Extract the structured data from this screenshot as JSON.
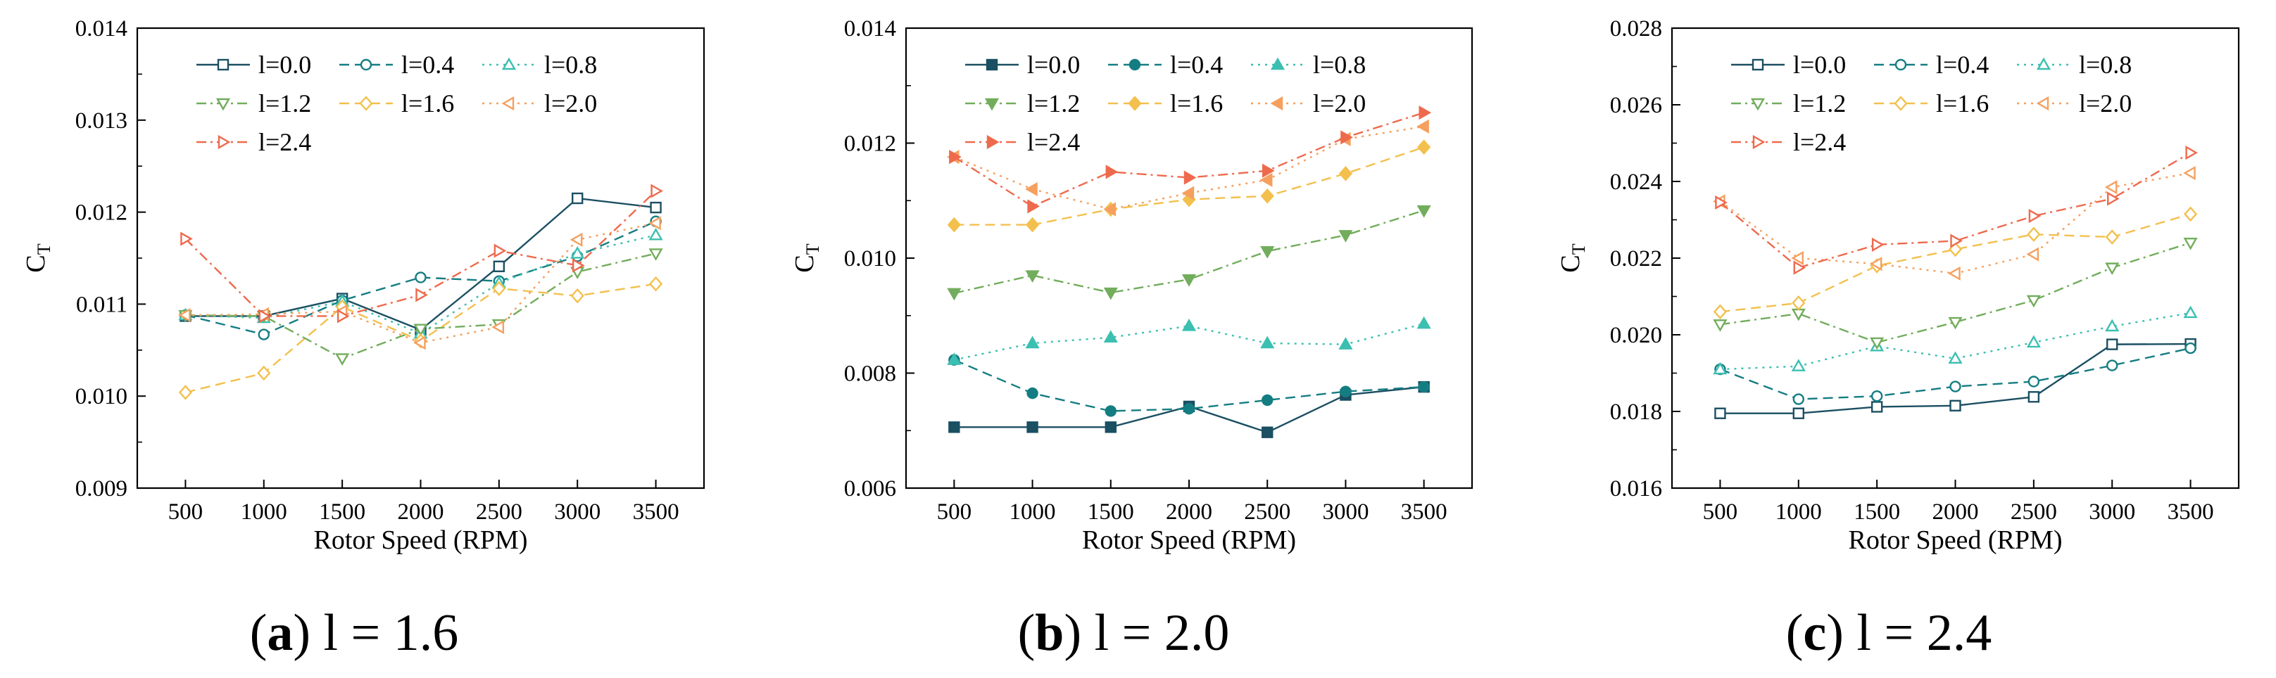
{
  "figure": {
    "marker_styles": {
      "0": "square",
      "1": "circle",
      "2": "triangle-up",
      "3": "triangle-down",
      "4": "diamond",
      "5": "triangle-left",
      "6": "triangle-right"
    }
  },
  "chart_data": [
    {
      "type": "line",
      "caption_letter": "a",
      "caption_rest": "l = 1.6",
      "xlabel": "Rotor Speed (RPM)",
      "ylabel_main": "C",
      "ylabel_sub": "T",
      "x": [
        500,
        1000,
        1500,
        2000,
        2500,
        3000,
        3500
      ],
      "xticks": [
        "500",
        "1000",
        "1500",
        "2000",
        "2500",
        "3000",
        "3500"
      ],
      "ylim": [
        0.009,
        0.014
      ],
      "yticks": [
        "0.009",
        "0.010",
        "0.011",
        "0.012",
        "0.013",
        "0.014"
      ],
      "filled_markers": false,
      "legend_position": "top-left",
      "series": [
        {
          "name": "l=0.0",
          "color": "#1b4f62",
          "dash": "solid",
          "values": [
            0.01087,
            0.01087,
            0.01106,
            0.01072,
            0.01141,
            0.01215,
            0.01205
          ]
        },
        {
          "name": "l=0.4",
          "color": "#147d82",
          "dash": "dashed",
          "values": [
            0.01088,
            0.01067,
            0.01104,
            0.01129,
            0.01125,
            0.01152,
            0.0119
          ]
        },
        {
          "name": "l=0.8",
          "color": "#3bbfb1",
          "dash": "dotted",
          "values": [
            0.01088,
            0.01085,
            0.01103,
            0.01068,
            0.01123,
            0.01155,
            0.01175
          ]
        },
        {
          "name": "l=1.2",
          "color": "#72ad5c",
          "dash": "dashdot",
          "values": [
            0.01088,
            0.01087,
            0.01041,
            0.01073,
            0.01078,
            0.01135,
            0.01155
          ]
        },
        {
          "name": "l=1.6",
          "color": "#f3c04d",
          "dash": "dashed",
          "values": [
            0.01004,
            0.01025,
            0.01097,
            0.0106,
            0.01117,
            0.01109,
            0.01122
          ]
        },
        {
          "name": "l=2.0",
          "color": "#f5a05f",
          "dash": "dotted",
          "values": [
            0.01088,
            0.01089,
            0.01092,
            0.01058,
            0.01075,
            0.0117,
            0.01188
          ]
        },
        {
          "name": "l=2.4",
          "color": "#ee6a4d",
          "dash": "dashdot",
          "values": [
            0.01171,
            0.01087,
            0.01087,
            0.0111,
            0.01158,
            0.01142,
            0.01223
          ]
        }
      ]
    },
    {
      "type": "line",
      "caption_letter": "b",
      "caption_rest": "l = 2.0",
      "xlabel": "Rotor Speed (RPM)",
      "ylabel_main": "C",
      "ylabel_sub": "T",
      "x": [
        500,
        1000,
        1500,
        2000,
        2500,
        3000,
        3500
      ],
      "xticks": [
        "500",
        "1000",
        "1500",
        "2000",
        "2500",
        "3000",
        "3500"
      ],
      "ylim": [
        0.006,
        0.014
      ],
      "yticks": [
        "0.006",
        "0.008",
        "0.010",
        "0.012",
        "0.014"
      ],
      "filled_markers": true,
      "legend_position": "top-left",
      "series": [
        {
          "name": "l=0.0",
          "color": "#1b4f62",
          "dash": "solid",
          "values": [
            0.00706,
            0.00706,
            0.00706,
            0.00742,
            0.00697,
            0.00762,
            0.00776
          ]
        },
        {
          "name": "l=0.4",
          "color": "#147d82",
          "dash": "dashed",
          "values": [
            0.00823,
            0.00765,
            0.00734,
            0.00738,
            0.00753,
            0.00768,
            0.00776
          ]
        },
        {
          "name": "l=0.8",
          "color": "#3bbfb1",
          "dash": "dotted",
          "values": [
            0.00823,
            0.00852,
            0.00862,
            0.00882,
            0.00852,
            0.0085,
            0.00886
          ]
        },
        {
          "name": "l=1.2",
          "color": "#72ad5c",
          "dash": "dashdot",
          "values": [
            0.00939,
            0.0097,
            0.0094,
            0.00963,
            0.01012,
            0.0104,
            0.01083
          ]
        },
        {
          "name": "l=1.6",
          "color": "#f3c04d",
          "dash": "dashed",
          "values": [
            0.01058,
            0.01058,
            0.01085,
            0.01102,
            0.01108,
            0.01147,
            0.01193
          ]
        },
        {
          "name": "l=2.0",
          "color": "#f5a05f",
          "dash": "dotted",
          "values": [
            0.01176,
            0.0112,
            0.01085,
            0.01113,
            0.01136,
            0.01207,
            0.01229
          ]
        },
        {
          "name": "l=2.4",
          "color": "#ee6a4d",
          "dash": "dashdot",
          "values": [
            0.01176,
            0.0109,
            0.0115,
            0.0114,
            0.01152,
            0.0121,
            0.01253
          ]
        }
      ]
    },
    {
      "type": "line",
      "caption_letter": "c",
      "caption_rest": "l = 2.4",
      "xlabel": "Rotor Speed (RPM)",
      "ylabel_main": "C",
      "ylabel_sub": "T",
      "x": [
        500,
        1000,
        1500,
        2000,
        2500,
        3000,
        3500
      ],
      "xticks": [
        "500",
        "1000",
        "1500",
        "2000",
        "2500",
        "3000",
        "3500"
      ],
      "ylim": [
        0.016,
        0.028
      ],
      "yticks": [
        "0.016",
        "0.018",
        "0.020",
        "0.022",
        "0.024",
        "0.026",
        "0.028"
      ],
      "filled_markers": false,
      "legend_position": "top-left",
      "series": [
        {
          "name": "l=0.0",
          "color": "#1b4f62",
          "dash": "solid",
          "values": [
            0.01795,
            0.01795,
            0.01812,
            0.01815,
            0.01838,
            0.01975,
            0.01976
          ]
        },
        {
          "name": "l=0.4",
          "color": "#147d82",
          "dash": "dashed",
          "values": [
            0.0191,
            0.01832,
            0.0184,
            0.01865,
            0.01878,
            0.0192,
            0.01965
          ]
        },
        {
          "name": "l=0.8",
          "color": "#3bbfb1",
          "dash": "dotted",
          "values": [
            0.0191,
            0.01918,
            0.0197,
            0.01938,
            0.0198,
            0.02022,
            0.02057
          ]
        },
        {
          "name": "l=1.2",
          "color": "#72ad5c",
          "dash": "dashdot",
          "values": [
            0.02027,
            0.02055,
            0.0198,
            0.02033,
            0.0209,
            0.02175,
            0.0224
          ]
        },
        {
          "name": "l=1.6",
          "color": "#f3c04d",
          "dash": "dashed",
          "values": [
            0.0206,
            0.02083,
            0.0218,
            0.02223,
            0.02262,
            0.02255,
            0.02315
          ]
        },
        {
          "name": "l=2.0",
          "color": "#f5a05f",
          "dash": "dotted",
          "values": [
            0.02348,
            0.022,
            0.02185,
            0.0216,
            0.0221,
            0.02385,
            0.02422
          ]
        },
        {
          "name": "l=2.4",
          "color": "#ee6a4d",
          "dash": "dashdot",
          "values": [
            0.02345,
            0.02175,
            0.02235,
            0.02245,
            0.0231,
            0.02355,
            0.02475
          ]
        }
      ]
    }
  ]
}
